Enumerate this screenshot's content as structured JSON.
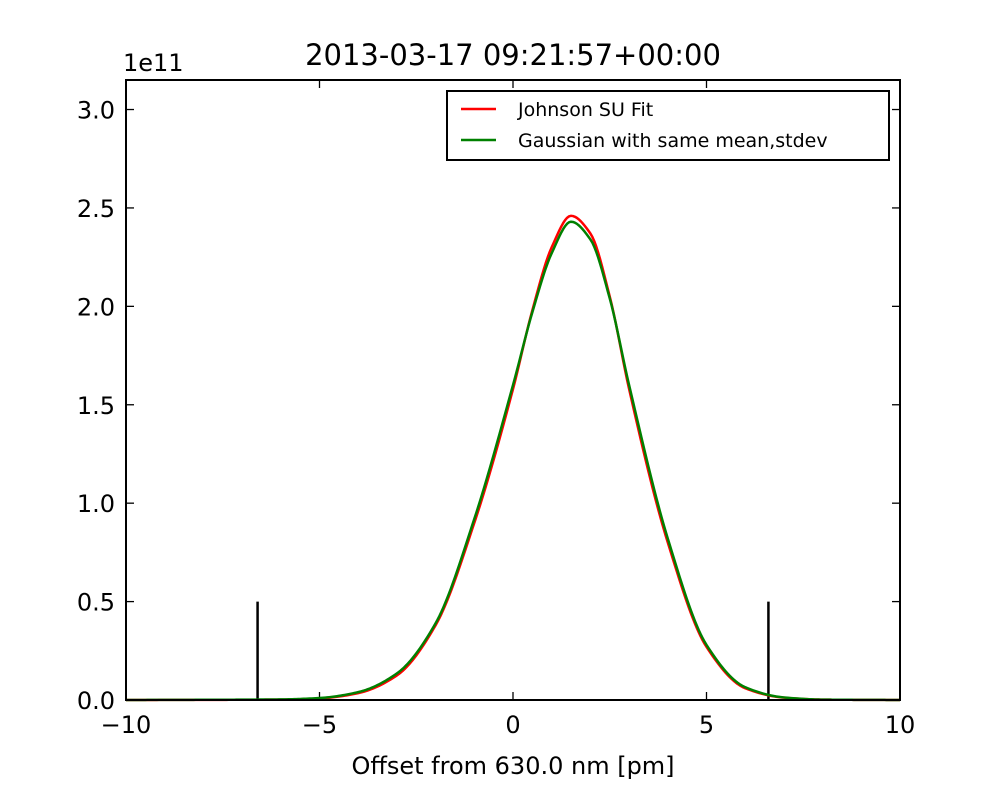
{
  "chart_data": {
    "type": "line",
    "title": "2013-03-17 09:21:57+00:00",
    "xlabel": "Offset from 630.0 nm [pm]",
    "ylabel": "",
    "y_offset_label": "1e11",
    "xlim": [
      -10,
      10
    ],
    "ylim": [
      0,
      3.15
    ],
    "y_scale_factor": 100000000000.0,
    "x_ticks": [
      -10,
      -5,
      0,
      5,
      10
    ],
    "x_tick_labels": [
      "−10",
      "−5",
      "0",
      "5",
      "10"
    ],
    "y_ticks": [
      0,
      0.5,
      1.0,
      1.5,
      2.0,
      2.5,
      3.0
    ],
    "y_tick_labels": [
      "0.0",
      "0.5",
      "1.0",
      "1.5",
      "2.0",
      "2.5",
      "3.0"
    ],
    "grid": false,
    "legend_position": "top-right",
    "series": [
      {
        "name": "Johnson SU Fit",
        "color": "#ff0000",
        "x": [
          -10,
          -6,
          -5,
          -4,
          -3,
          -2,
          -1,
          0,
          0.5,
          1,
          1.5,
          2,
          2.5,
          3,
          4,
          5,
          6,
          7,
          8,
          10
        ],
        "y": [
          0,
          0.002,
          0.008,
          0.035,
          0.125,
          0.38,
          0.9,
          1.58,
          1.98,
          2.3,
          2.46,
          2.37,
          2.05,
          1.58,
          0.8,
          0.27,
          0.06,
          0.012,
          0.002,
          0
        ]
      },
      {
        "name": "Gaussian with same mean,stdev",
        "color": "#008000",
        "x": [
          -10,
          -6,
          -5,
          -4,
          -3,
          -2,
          -1,
          0,
          0.5,
          1,
          1.5,
          2,
          2.5,
          3,
          4,
          5,
          6,
          7,
          8,
          10
        ],
        "y": [
          0,
          0.003,
          0.01,
          0.04,
          0.135,
          0.39,
          0.92,
          1.6,
          1.97,
          2.27,
          2.43,
          2.34,
          2.04,
          1.6,
          0.82,
          0.28,
          0.065,
          0.013,
          0.002,
          0
        ]
      }
    ],
    "markers": [
      {
        "x": -6.6,
        "y": 0.5,
        "color": "#000000"
      },
      {
        "x": 6.6,
        "y": 0.5,
        "color": "#000000"
      }
    ]
  }
}
